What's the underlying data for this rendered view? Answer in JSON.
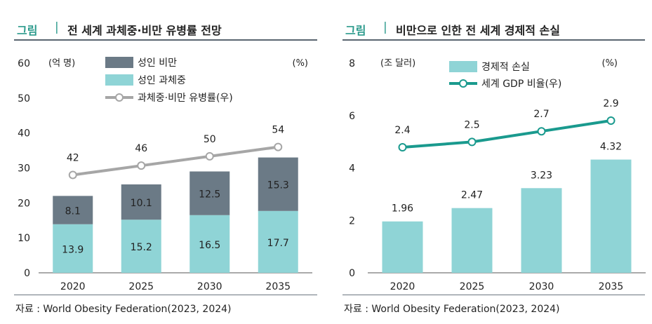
{
  "colors": {
    "accent": "#2b9a8c",
    "bar_dark": "#6b7a86",
    "bar_light": "#8fd4d6",
    "line_gray": "#a6a6a6",
    "line_teal": "#1a9a8e"
  },
  "left": {
    "tag": "그림",
    "separator": "|",
    "title": "전 세계 과체중·비만 유병률 전망",
    "source": "자료 : World Obesity Federation(2023, 2024)"
  },
  "right": {
    "tag": "그림",
    "separator": "|",
    "title": "비만으로 인한 전 세계 경제적 손실",
    "source": "자료 : World Obesity Federation(2023, 2024)"
  },
  "chart_data": [
    {
      "type": "bar",
      "stacked": true,
      "title": "전 세계 과체중·비만 유병률 전망",
      "categories": [
        "2020",
        "2025",
        "2030",
        "2035"
      ],
      "series": [
        {
          "name": "성인 과체중",
          "values": [
            13.9,
            15.2,
            16.5,
            17.7
          ],
          "value_labels": [
            "13.9",
            "15.2",
            "16.5",
            "17.7"
          ]
        },
        {
          "name": "성인 비만",
          "values": [
            8.1,
            10.1,
            12.5,
            15.3
          ],
          "value_labels": [
            "8.1",
            "10.1",
            "12.5",
            "15.3"
          ]
        }
      ],
      "line_series": {
        "name": "과체중·비만 유병률(우)",
        "values": [
          42,
          46,
          50,
          54
        ],
        "value_labels": [
          "42",
          "46",
          "50",
          "54"
        ],
        "axis": "right"
      },
      "y_unit_label": "(억 명)",
      "y2_unit_label": "(%)",
      "ylim": [
        0,
        60
      ],
      "yticks": [
        0,
        10,
        20,
        30,
        40,
        50,
        60
      ],
      "y2lim": [
        0,
        90
      ],
      "legend": [
        "성인 비만",
        "성인 과체중",
        "과체중·비만 유병률(우)"
      ],
      "legend_position": "top-center"
    },
    {
      "type": "bar",
      "stacked": false,
      "title": "비만으로 인한 전 세계 경제적 손실",
      "categories": [
        "2020",
        "2025",
        "2030",
        "2035"
      ],
      "series": [
        {
          "name": "경제적 손실",
          "values": [
            1.96,
            2.47,
            3.23,
            4.32
          ],
          "value_labels": [
            "1.96",
            "2.47",
            "3.23",
            "4.32"
          ]
        }
      ],
      "line_series": {
        "name": "세계 GDP 비율(우)",
        "values": [
          2.4,
          2.5,
          2.7,
          2.9
        ],
        "value_labels": [
          "2.4",
          "2.5",
          "2.7",
          "2.9"
        ],
        "axis": "right"
      },
      "y_unit_label": "(조 달러)",
      "y2_unit_label": "(%)",
      "ylim": [
        0,
        8
      ],
      "yticks": [
        0,
        2,
        4,
        6,
        8
      ],
      "y2lim": [
        0,
        4
      ],
      "legend": [
        "경제적 손실",
        "세계 GDP 비율(우)"
      ],
      "legend_position": "top-center"
    }
  ]
}
